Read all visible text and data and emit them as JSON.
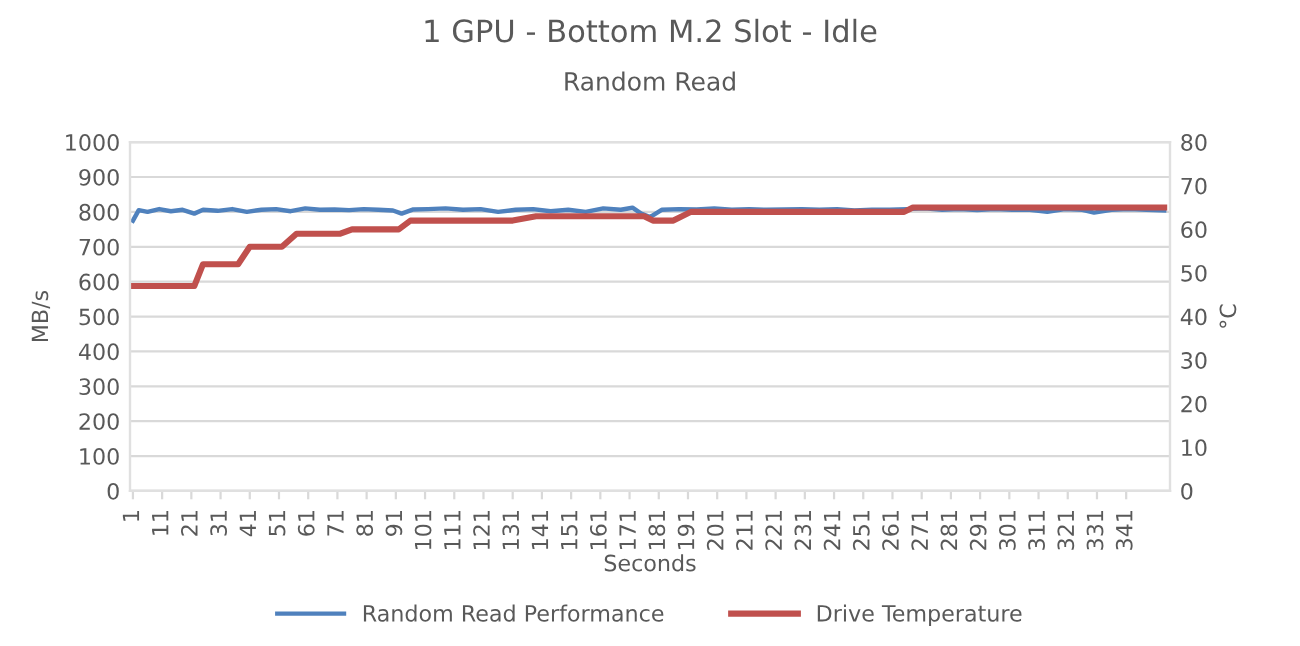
{
  "chart_data": {
    "type": "line",
    "title": "1 GPU - Bottom M.2 Slot - Idle",
    "subtitle": "Random Read",
    "xlabel": "Seconds",
    "ylabel": "MB/s",
    "y2label": "°C",
    "xlim": [
      0,
      356
    ],
    "xticks": [
      1,
      11,
      21,
      31,
      41,
      51,
      61,
      71,
      81,
      91,
      101,
      111,
      121,
      131,
      141,
      151,
      161,
      171,
      181,
      191,
      201,
      211,
      221,
      231,
      241,
      251,
      261,
      271,
      281,
      291,
      301,
      311,
      321,
      331,
      341
    ],
    "ylim": [
      0,
      1000
    ],
    "yticks": [
      0,
      100,
      200,
      300,
      400,
      500,
      600,
      700,
      800,
      900,
      1000
    ],
    "y2lim": [
      0,
      80
    ],
    "y2ticks": [
      0,
      10,
      20,
      30,
      40,
      50,
      60,
      70,
      80
    ],
    "grid": "y",
    "legend": "bottom",
    "marker": "none",
    "line_style": "solid",
    "series": [
      {
        "name": "Random Read Performance",
        "color": "#4f81bd",
        "x": [
          1,
          3,
          6,
          10,
          14,
          18,
          22,
          25,
          30,
          35,
          40,
          45,
          50,
          55,
          60,
          65,
          70,
          75,
          80,
          85,
          90,
          93,
          97,
          102,
          108,
          114,
          120,
          126,
          132,
          138,
          144,
          150,
          156,
          162,
          168,
          172,
          175,
          178,
          182,
          188,
          194,
          200,
          206,
          212,
          218,
          224,
          230,
          236,
          242,
          248,
          254,
          260,
          266,
          272,
          278,
          284,
          290,
          296,
          302,
          308,
          314,
          320,
          326,
          330,
          336,
          342,
          348,
          354
        ],
        "values": [
          775,
          805,
          800,
          808,
          802,
          806,
          795,
          806,
          803,
          808,
          800,
          806,
          808,
          802,
          810,
          806,
          807,
          805,
          808,
          806,
          804,
          795,
          807,
          808,
          810,
          806,
          808,
          800,
          806,
          808,
          802,
          806,
          800,
          810,
          806,
          812,
          795,
          785,
          806,
          808,
          807,
          810,
          806,
          808,
          806,
          807,
          808,
          806,
          808,
          804,
          806,
          806,
          808,
          810,
          806,
          808,
          805,
          808,
          806,
          806,
          800,
          808,
          806,
          798,
          806,
          808,
          806,
          804
        ]
      },
      {
        "name": "Drive Temperature",
        "color": "#c0504d",
        "axis": "y2",
        "x": [
          1,
          22,
          25,
          37,
          41,
          52,
          57,
          72,
          76,
          92,
          96,
          131,
          139,
          176,
          179,
          186,
          192,
          265,
          268,
          354
        ],
        "values": [
          47,
          47,
          52,
          52,
          56,
          56,
          59,
          59,
          60,
          60,
          62,
          62,
          63,
          63,
          62,
          62,
          64,
          64,
          65,
          65
        ]
      }
    ]
  }
}
